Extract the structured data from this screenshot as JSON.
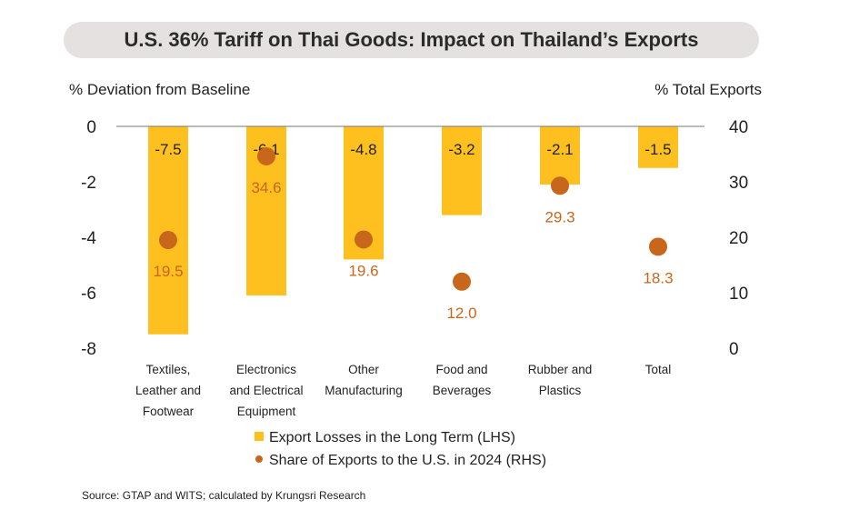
{
  "chart_data": {
    "type": "bar",
    "title": "U.S. 36% Tariff on Thai Goods: Impact on Thailand’s Exports",
    "ylabel_left": "% Deviation from Baseline",
    "ylabel_right": "% Total Exports",
    "ylim_left": [
      -8,
      0
    ],
    "ylim_right": [
      0,
      40
    ],
    "yticks_left": [
      "0",
      "-2",
      "-4",
      "-6",
      "-8"
    ],
    "yticks_right": [
      "40",
      "30",
      "20",
      "10",
      "0"
    ],
    "categories": [
      [
        "Textiles,",
        "Leather and",
        "Footwear"
      ],
      [
        "Electronics",
        "and Electrical",
        "Equipment"
      ],
      [
        "Other",
        "Manufacturing"
      ],
      [
        "Food and",
        "Beverages"
      ],
      [
        "Rubber and",
        "Plastics"
      ],
      [
        "Total"
      ]
    ],
    "series": [
      {
        "name": "Export Losses in the Long Term (LHS)",
        "type": "bar",
        "axis": "left",
        "values": [
          -7.5,
          -6.1,
          -4.8,
          -3.2,
          -2.1,
          -1.5
        ],
        "labels": [
          "-7.5",
          "-6.1",
          "-4.8",
          "-3.2",
          "-2.1",
          "-1.5"
        ],
        "color": "#FDC01F"
      },
      {
        "name": "Share of Exports to the U.S. in 2024 (RHS)",
        "type": "scatter",
        "axis": "right",
        "values": [
          19.5,
          34.6,
          19.6,
          12.0,
          29.3,
          18.3
        ],
        "labels": [
          "19.5",
          "34.6",
          "19.6",
          "12.0",
          "29.3",
          "18.3"
        ],
        "color": "#C8661C"
      }
    ],
    "grid": false,
    "legend": "bottom"
  },
  "source": "Source:  GTAP and WITS; calculated  by Krungsri  Research"
}
